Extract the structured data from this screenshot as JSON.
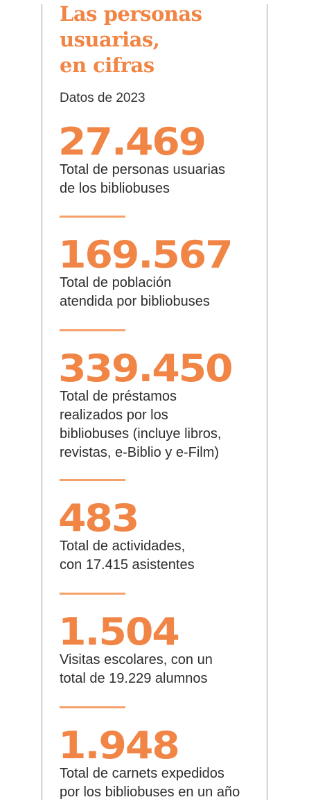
{
  "title": {
    "line1": "Las personas",
    "line2": "usuarias,",
    "line3": "en cifras"
  },
  "subtitle": "Datos de 2023",
  "stats": [
    {
      "value": "27.469",
      "label_line1": "Total de personas usuarias",
      "label_line2": "de los bibliobuses"
    },
    {
      "value": "169.567",
      "label_line1": "Total de población",
      "label_line2": "atendida por bibliobuses"
    },
    {
      "value": "339.450",
      "label_line1": "Total de préstamos",
      "label_line2": "realizados por los",
      "label_line3": "bibliobuses (incluye libros,",
      "label_line4": "revistas, e-Biblio y e-Film)"
    },
    {
      "value": "483",
      "label_line1": "Total de actividades,",
      "label_line2": "con 17.415 asistentes"
    },
    {
      "value": "1.504",
      "label_line1": "Visitas escolares, con un",
      "label_line2": "total de 19.229 alumnos"
    },
    {
      "value": "1.948",
      "label_line1": "Total de carnets expedidos",
      "label_line2": "por los bibliobuses en un año"
    }
  ],
  "colors": {
    "accent": "#f08545",
    "divider": "#f6a06a",
    "text": "#2d2d2d",
    "rule": "#9a9a9a"
  }
}
